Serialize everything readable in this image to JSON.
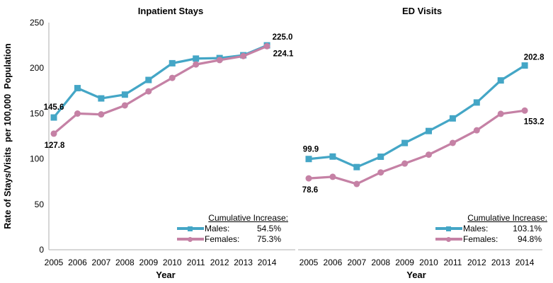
{
  "figure": {
    "ylabel": "Rate of Stays/Visits  per 100,000  Population",
    "xlabel": "Year"
  },
  "colors": {
    "males": "#44A6C6",
    "females": "#C581A5",
    "axis_line": "#BFBFBF",
    "text": "#000000"
  },
  "chart_data": [
    {
      "type": "line",
      "title": "Inpatient Stays",
      "xlabel": "Year",
      "ylabel": "Rate of Stays/Visits per 100,000 Population",
      "x": [
        2005,
        2006,
        2007,
        2008,
        2009,
        2010,
        2011,
        2012,
        2013,
        2014
      ],
      "ylim": [
        0,
        250
      ],
      "yticks": [
        0,
        50,
        100,
        150,
        200,
        250
      ],
      "grid": false,
      "legend_title": "Cumulative Increase:",
      "legend_position": "inside-bottom-right",
      "series": [
        {
          "name": "Males",
          "label": "Males:",
          "cumulative_increase": "54.5%",
          "color": "#44A6C6",
          "marker": "square",
          "values": [
            145.6,
            177.9,
            166.6,
            170.8,
            186.9,
            205.3,
            210.4,
            211.0,
            214.1,
            225.0
          ],
          "first_label": "145.6",
          "last_label": "225.0"
        },
        {
          "name": "Females",
          "label": "Females:",
          "cumulative_increase": "75.3%",
          "color": "#C581A5",
          "marker": "circle",
          "values": [
            127.8,
            149.9,
            149.0,
            158.9,
            174.4,
            189.2,
            204.0,
            208.8,
            213.2,
            224.1
          ],
          "first_label": "127.8",
          "last_label": "224.1"
        }
      ]
    },
    {
      "type": "line",
      "title": "ED Visits",
      "xlabel": "Year",
      "ylabel": "Rate of Stays/Visits per 100,000 Population",
      "x": [
        2005,
        2006,
        2007,
        2008,
        2009,
        2010,
        2011,
        2012,
        2013,
        2014
      ],
      "ylim": [
        0,
        250
      ],
      "yticks": [
        0,
        50,
        100,
        150,
        200,
        250
      ],
      "grid": false,
      "legend_title": "Cumulative Increase:",
      "legend_position": "inside-bottom-right",
      "series": [
        {
          "name": "Males",
          "label": "Males:",
          "cumulative_increase": "103.1%",
          "color": "#44A6C6",
          "marker": "square",
          "values": [
            99.9,
            102.6,
            91.0,
            102.4,
            117.5,
            130.7,
            144.6,
            162.1,
            186.4,
            202.8
          ],
          "first_label": "99.9",
          "last_label": "202.8"
        },
        {
          "name": "Females",
          "label": "Females:",
          "cumulative_increase": "94.8%",
          "color": "#C581A5",
          "marker": "circle",
          "values": [
            78.6,
            80.3,
            72.4,
            85.1,
            94.9,
            104.7,
            117.6,
            131.5,
            149.6,
            153.2
          ],
          "first_label": "78.6",
          "last_label": "153.2"
        }
      ]
    }
  ]
}
